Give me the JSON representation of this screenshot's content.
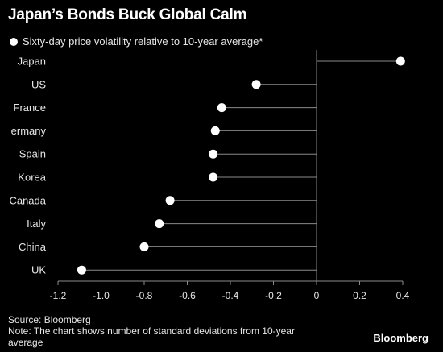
{
  "header": {
    "title": "Japan’s Bonds Buck Global Calm",
    "legend_label": "Sixty-day price volatility relative to 10-year average*"
  },
  "footer": {
    "source": "Source: Bloomberg",
    "note": "Note: The chart shows number of standard deviations from 10-year average",
    "brand": "Bloomberg"
  },
  "colors": {
    "background": "#000000",
    "marker": "#ffffff",
    "stem": "#8a8a8a",
    "text": "#e6e6e6"
  },
  "chart_data": {
    "type": "lollipop",
    "orientation": "horizontal",
    "categories": [
      "Japan",
      "US",
      "France",
      "ermany",
      "Spain",
      "Korea",
      "Canada",
      "Italy",
      "China",
      "UK"
    ],
    "values": [
      0.39,
      -0.28,
      -0.44,
      -0.47,
      -0.48,
      -0.48,
      -0.68,
      -0.73,
      -0.8,
      -1.09
    ],
    "xlim": [
      -1.2,
      0.4
    ],
    "xticks": [
      -1.2,
      -1.0,
      -0.8,
      -0.6,
      -0.4,
      -0.2,
      0,
      0.2,
      0.4
    ],
    "xtick_labels": [
      "-1.2",
      "-1.0",
      "-0.8",
      "-0.6",
      "-0.4",
      "-0.2",
      "0",
      "0.2",
      "0.4"
    ],
    "series": [
      {
        "name": "Sixty-day price volatility relative to 10-year average*",
        "values": [
          0.39,
          -0.28,
          -0.44,
          -0.47,
          -0.48,
          -0.48,
          -0.68,
          -0.73,
          -0.8,
          -1.09
        ]
      }
    ],
    "legend_position": "top-left",
    "grid": false
  }
}
